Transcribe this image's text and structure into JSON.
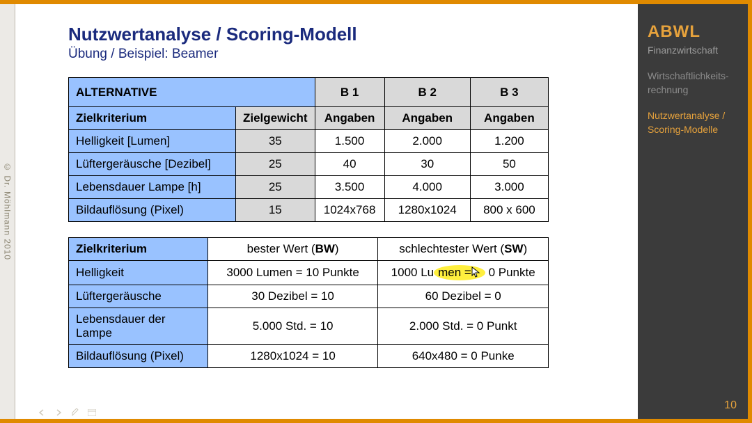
{
  "meta": {
    "copyright": "© Dr. Möhlmann 2010"
  },
  "header": {
    "title": "Nutzwertanalyse / Scoring-Modell",
    "subtitle": "Übung / Beispiel: Beamer"
  },
  "table1": {
    "header_alternative": "ALTERNATIVE",
    "header_b1": "B 1",
    "header_b2": "B 2",
    "header_b3": "B 3",
    "sub_zielkriterium": "Zielkriterium",
    "sub_zielgewicht": "Zielgewicht",
    "sub_angaben": "Angaben",
    "rows": [
      {
        "label": "Helligkeit  [Lumen]",
        "weight": "35",
        "b1": "1.500",
        "b2": "2.000",
        "b3": "1.200"
      },
      {
        "label": "Lüftergeräusche [Dezibel]",
        "weight": "25",
        "b1": "40",
        "b2": "30",
        "b3": "50"
      },
      {
        "label": "Lebensdauer Lampe [h]",
        "weight": "25",
        "b1": "3.500",
        "b2": "4.000",
        "b3": "3.000"
      },
      {
        "label": "Bildauflösung (Pixel)",
        "weight": "15",
        "b1": "1024x768",
        "b2": "1280x1024",
        "b3": "800 x 600"
      }
    ]
  },
  "table2": {
    "head_ziel": "Zielkriterium",
    "head_bw_prefix": "bester Wert (",
    "head_bw_bold": "BW",
    "head_bw_suffix": ")",
    "head_sw_prefix": "schlechtester Wert (",
    "head_sw_bold": "SW",
    "head_sw_suffix": ")",
    "rows": [
      {
        "label": "Helligkeit",
        "bw": "3000 Lumen = 10 Punkte",
        "sw_pre": "1000 Lu",
        "sw_hl": "men =",
        "sw_post": " 0 Punkte"
      },
      {
        "label": "Lüftergeräusche",
        "bw": "30 Dezibel  = 10",
        "sw": "60 Dezibel  = 0"
      },
      {
        "label": "Lebensdauer der Lampe",
        "bw": "5.000 Std. = 10",
        "sw": "2.000 Std. = 0 Punkt"
      },
      {
        "label": "Bildauflösung (Pixel)",
        "bw": "1280x1024 = 10",
        "sw": "640x480 = 0 Punke"
      }
    ]
  },
  "sidebar": {
    "brand": "ABWL",
    "sub1": "Finanzwirtschaft",
    "sub2": "Wirtschaftlichkeits-rechnung",
    "active": "Nutzwertanalyse / Scoring-Modelle",
    "page": "10"
  },
  "colors": {
    "frame_border": "#e08a00",
    "heading": "#1a2a7d",
    "cell_blue": "#99c2ff",
    "cell_grey": "#d9d9d9",
    "sidebar_bg": "#3b3b3b",
    "accent": "#e6a23c",
    "highlight": "#ffef3e"
  }
}
